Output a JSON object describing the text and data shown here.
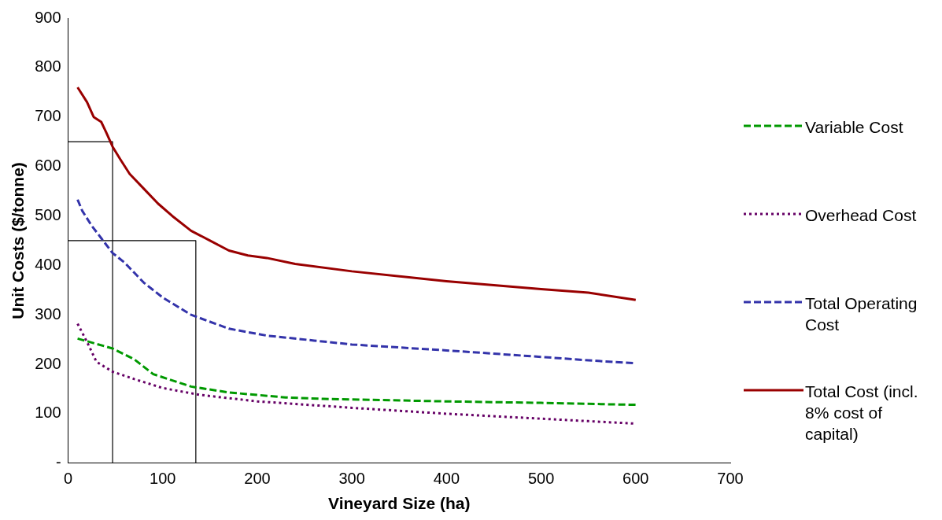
{
  "chart_data": {
    "type": "line",
    "xlabel": "Vineyard Size (ha)",
    "ylabel": "Unit Costs ($/tonne)",
    "xlim": [
      0,
      700
    ],
    "xticks": [
      0,
      100,
      200,
      300,
      400,
      500,
      600,
      700
    ],
    "ylim": [
      0,
      900
    ],
    "yticks": [
      {
        "value": 0,
        "label": "-"
      },
      100,
      200,
      300,
      400,
      500,
      600,
      700,
      800,
      900
    ],
    "grid": false,
    "legend": "right",
    "series": [
      {
        "name": "Variable Cost",
        "color": "#009900",
        "line_style": "dashed",
        "x": [
          10,
          47,
          70,
          90,
          130,
          170,
          230,
          270,
          400,
          500,
          600
        ],
        "values": [
          252,
          232,
          210,
          180,
          155,
          143,
          133,
          130,
          125,
          122,
          118
        ]
      },
      {
        "name": "Overhead Cost",
        "color": "#660066",
        "line_style": "dotted",
        "x": [
          10,
          20,
          30,
          47,
          70,
          100,
          140,
          200,
          300,
          400,
          500,
          550,
          600
        ],
        "values": [
          282,
          245,
          205,
          185,
          170,
          152,
          138,
          125,
          112,
          100,
          90,
          85,
          80
        ]
      },
      {
        "name": "Total Operating Cost",
        "color": "#3333aa",
        "line_style": "dashed",
        "x": [
          10,
          15,
          25,
          35,
          47,
          60,
          80,
          100,
          130,
          170,
          210,
          260,
          300,
          400,
          500,
          550,
          600
        ],
        "values": [
          533,
          510,
          480,
          455,
          425,
          405,
          365,
          335,
          300,
          272,
          258,
          248,
          240,
          228,
          215,
          208,
          202
        ]
      },
      {
        "name": "Total Cost (incl. 8% cost of capital)",
        "color": "#990000",
        "line_style": "solid",
        "x": [
          10,
          20,
          27,
          35,
          40,
          47,
          55,
          65,
          80,
          95,
          110,
          130,
          150,
          170,
          190,
          210,
          240,
          300,
          400,
          500,
          550,
          600
        ],
        "values": [
          760,
          730,
          700,
          690,
          670,
          640,
          615,
          585,
          555,
          525,
          500,
          470,
          450,
          430,
          420,
          415,
          403,
          388,
          368,
          352,
          345,
          330
        ]
      },
      {
        "color": "#000000",
        "line_style": "solid",
        "x": [
          0,
          47,
          47
        ],
        "values": [
          650,
          650,
          0
        ]
      },
      {
        "color": "#000000",
        "line_style": "solid",
        "x": [
          0,
          135,
          135
        ],
        "values": [
          450,
          450,
          0
        ]
      }
    ]
  }
}
